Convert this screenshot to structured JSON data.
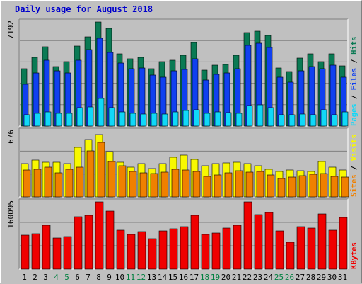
{
  "colors": {
    "hits": "#0a7a54",
    "files": "#1040f0",
    "pages": "#10d8f8",
    "visits": "#f8f800",
    "sites": "#f08000",
    "kbytes": "#f00000",
    "title": "#0000cc",
    "plot_bg": "#c0c0c0",
    "grid": "#808080"
  },
  "chart_data": [
    {
      "type": "bar",
      "title": "Daily usage for August 2018",
      "panel": "hits-files-pages",
      "ymax_label": "7192",
      "ylim": [
        0,
        7192
      ],
      "right_label_parts": [
        "Pages",
        "Files",
        "Hits"
      ],
      "categories": [
        "1",
        "2",
        "3",
        "4",
        "5",
        "6",
        "7",
        "8",
        "9",
        "10",
        "11",
        "12",
        "13",
        "14",
        "15",
        "16",
        "17",
        "18",
        "19",
        "20",
        "21",
        "22",
        "23",
        "24",
        "25",
        "26",
        "27",
        "28",
        "29",
        "30",
        "31"
      ],
      "series": [
        {
          "name": "Hits",
          "values": [
            3950,
            4760,
            5470,
            4130,
            4450,
            5520,
            6170,
            7180,
            6740,
            4970,
            4630,
            4760,
            3980,
            4450,
            4570,
            4880,
            5770,
            3860,
            4200,
            4260,
            4880,
            6470,
            6580,
            6240,
            4020,
            3750,
            4690,
            5010,
            4440,
            4990,
            4150
          ]
        },
        {
          "name": "Files",
          "values": [
            2870,
            3650,
            4540,
            3840,
            3680,
            4570,
            5290,
            6080,
            5080,
            4340,
            3940,
            3990,
            3520,
            3400,
            3840,
            3890,
            4630,
            3180,
            3560,
            3680,
            3940,
            5570,
            5720,
            5440,
            3400,
            3040,
            3840,
            4100,
            3970,
            4220,
            3400
          ]
        },
        {
          "name": "Pages",
          "values": [
            800,
            860,
            1000,
            860,
            870,
            1290,
            1340,
            1920,
            1290,
            970,
            870,
            850,
            870,
            850,
            960,
            1060,
            1130,
            890,
            1000,
            940,
            900,
            1420,
            1450,
            1260,
            760,
            800,
            820,
            790,
            1130,
            770,
            1000
          ]
        }
      ]
    },
    {
      "type": "bar",
      "panel": "visits-sites",
      "ymax_label": "676",
      "ylim": [
        0,
        676
      ],
      "right_label_parts": [
        "Sites",
        "Visits"
      ],
      "categories": [
        "1",
        "2",
        "3",
        "4",
        "5",
        "6",
        "7",
        "8",
        "9",
        "10",
        "11",
        "12",
        "13",
        "14",
        "15",
        "16",
        "17",
        "18",
        "19",
        "20",
        "21",
        "22",
        "23",
        "24",
        "25",
        "26",
        "27",
        "28",
        "29",
        "30",
        "31"
      ],
      "series": [
        {
          "name": "Visits",
          "values": [
            345,
            378,
            353,
            355,
            338,
            506,
            591,
            643,
            464,
            357,
            306,
            340,
            292,
            345,
            407,
            431,
            384,
            323,
            338,
            351,
            358,
            342,
            318,
            283,
            264,
            276,
            267,
            265,
            365,
            305,
            278
          ]
        },
        {
          "name": "Sites",
          "values": [
            276,
            286,
            302,
            249,
            282,
            308,
            471,
            562,
            367,
            323,
            261,
            244,
            242,
            252,
            282,
            276,
            262,
            213,
            227,
            248,
            267,
            251,
            262,
            224,
            189,
            204,
            219,
            231,
            237,
            214,
            203
          ]
        }
      ]
    },
    {
      "type": "bar",
      "panel": "kbytes",
      "ymax_label": "160095",
      "ylim": [
        0,
        160095
      ],
      "right_label_parts": [
        "KBytes"
      ],
      "categories": [
        "1",
        "2",
        "3",
        "4",
        "5",
        "6",
        "7",
        "8",
        "9",
        "10",
        "11",
        "12",
        "13",
        "14",
        "15",
        "16",
        "17",
        "18",
        "19",
        "20",
        "21",
        "22",
        "23",
        "24",
        "25",
        "26",
        "27",
        "28",
        "29",
        "30",
        "31"
      ],
      "series": [
        {
          "name": "KBytes",
          "values": [
            80400,
            85100,
            104000,
            74000,
            77300,
            125000,
            127500,
            159400,
            138000,
            92400,
            82100,
            90000,
            72200,
            91400,
            95600,
            101600,
            128000,
            82100,
            85800,
            97000,
            105200,
            159400,
            129700,
            134500,
            91200,
            64800,
            101500,
            97200,
            131200,
            93500,
            122700
          ]
        }
      ]
    }
  ],
  "x_axis": {
    "weekend_days": [
      "4",
      "5",
      "11",
      "12",
      "18",
      "19",
      "25",
      "26"
    ]
  }
}
